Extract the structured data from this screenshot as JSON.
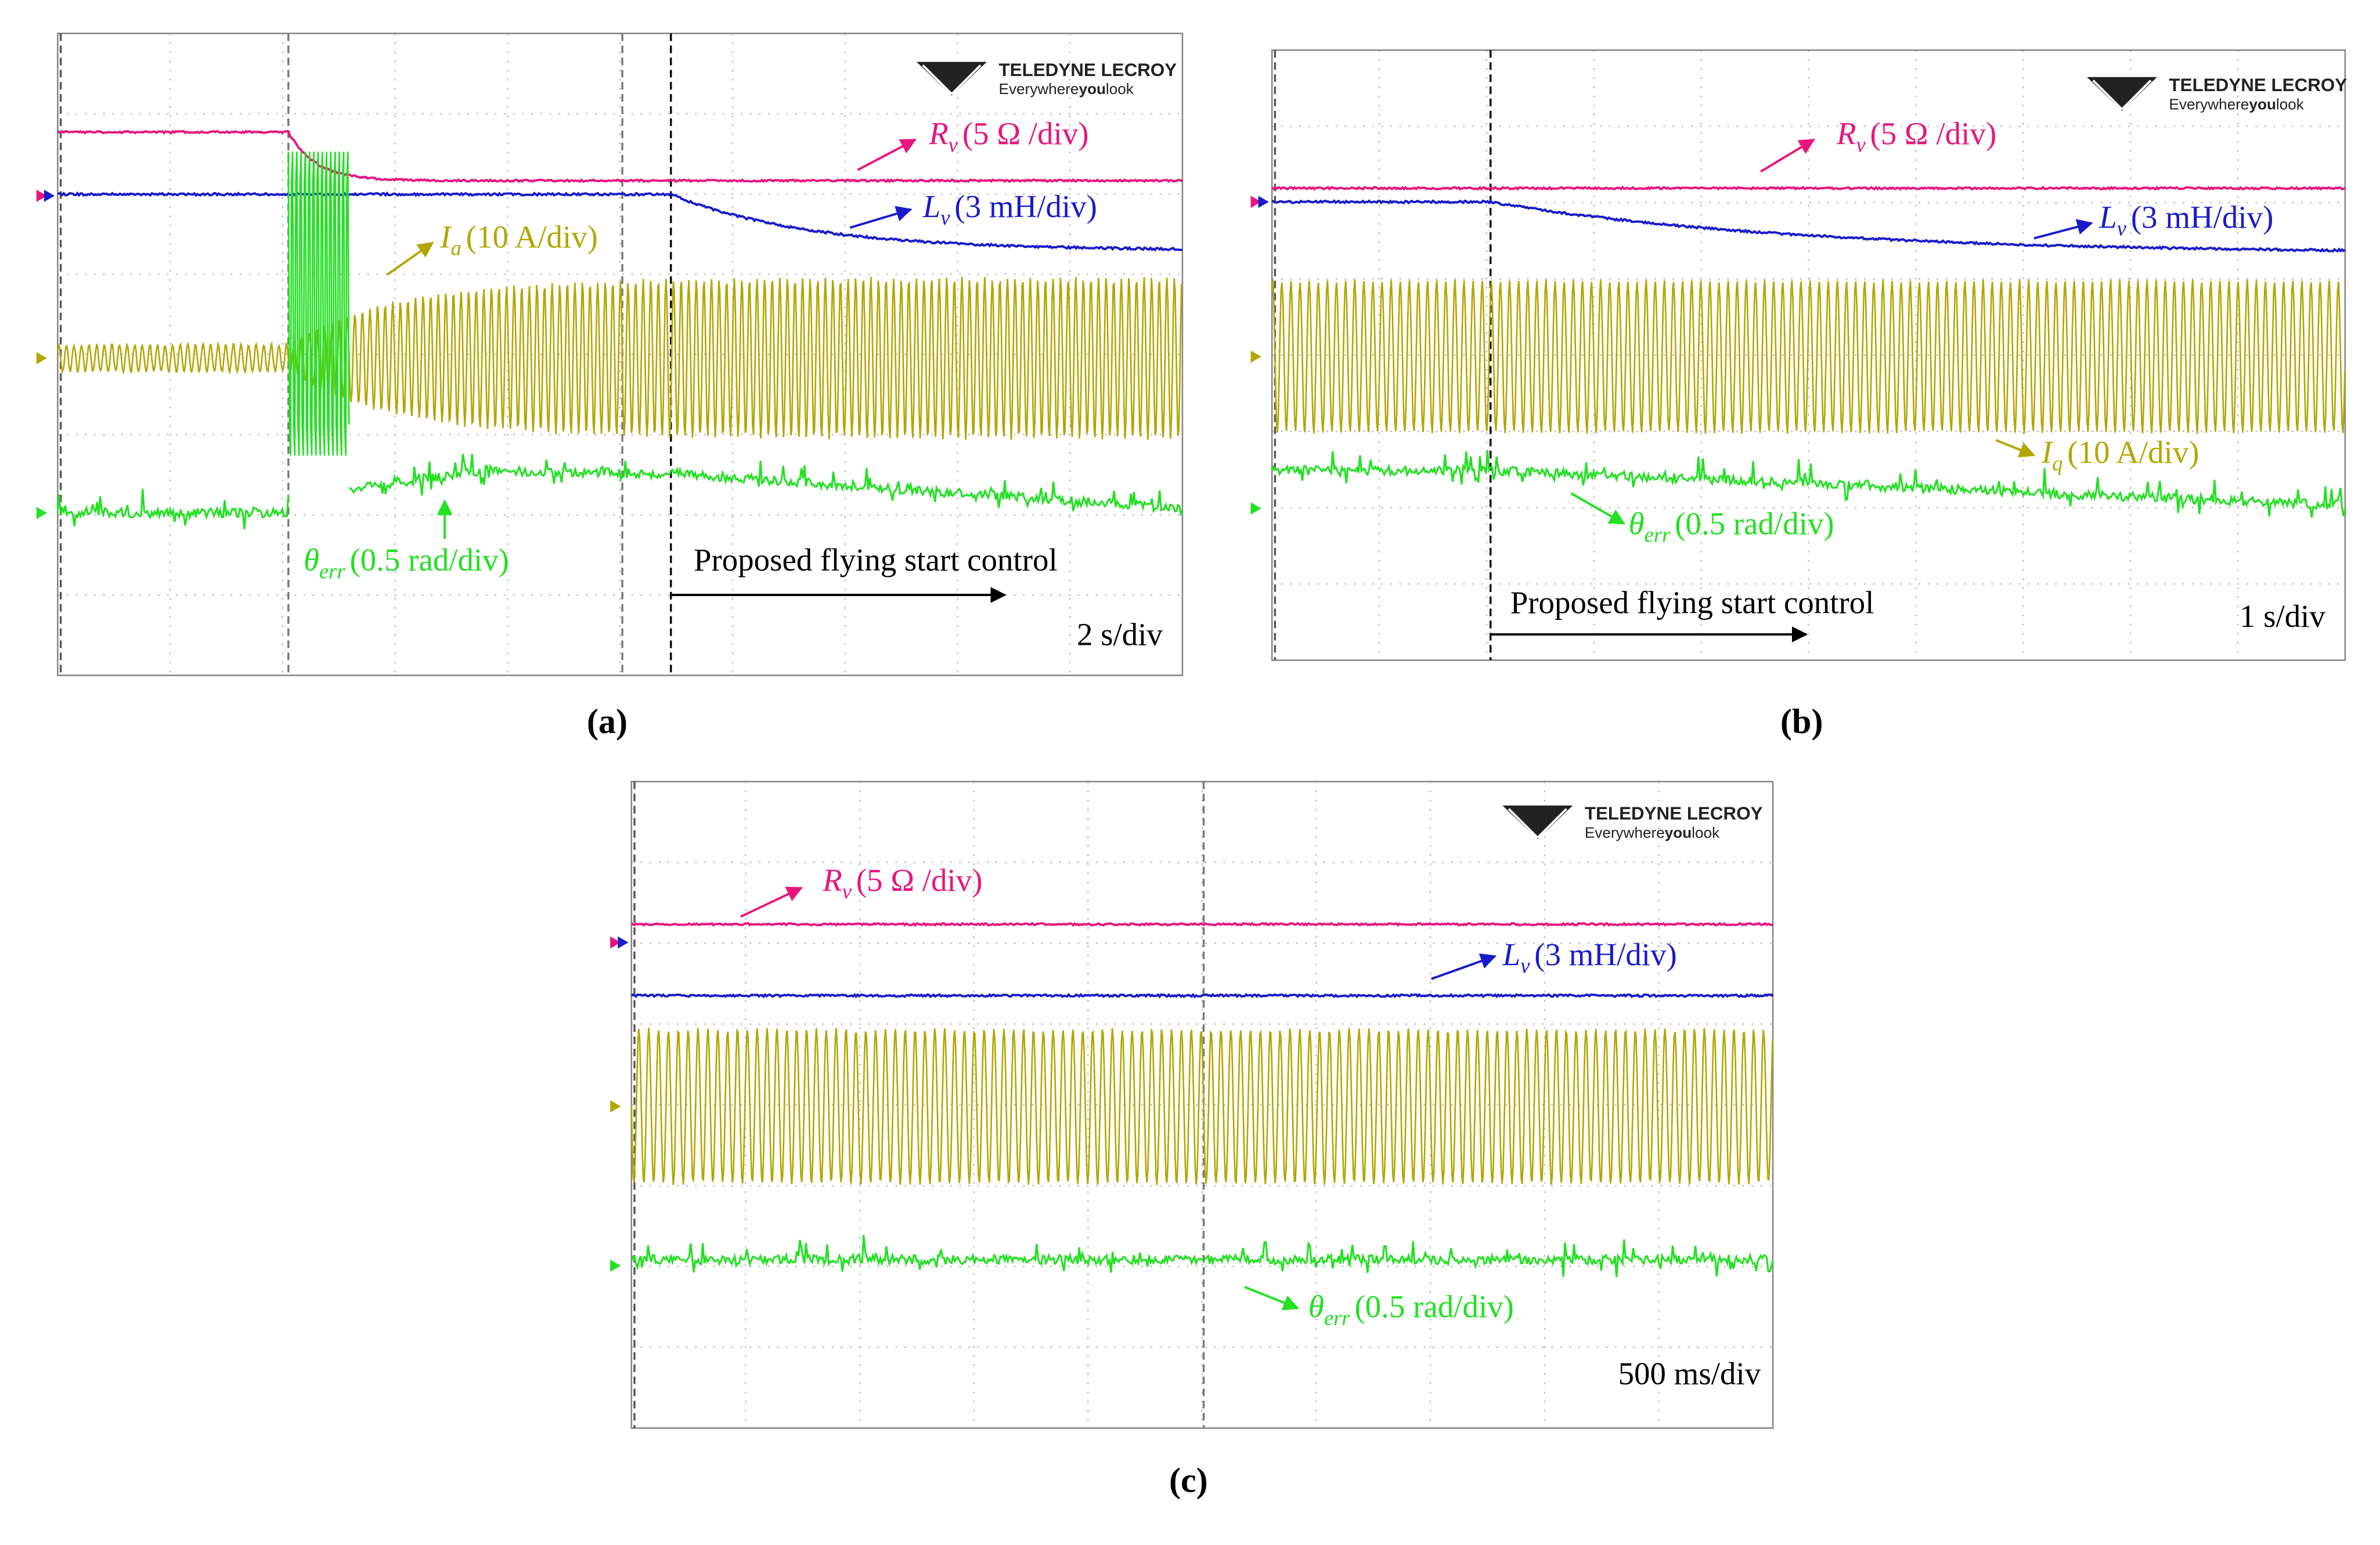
{
  "panels": [
    {
      "caption": "(a)",
      "annotations": [
        {
          "symbol": "R",
          "subscript": "v",
          "scale": "(5 Ω /div)"
        },
        {
          "symbol": "L",
          "subscript": "v",
          "scale": "(3 mH/div)"
        },
        {
          "symbol": "I",
          "subscript": "a",
          "scale": "(10 A/div)"
        },
        {
          "symbol": "θ",
          "subscript": "err",
          "scale": "(0.5 rad/div)"
        }
      ],
      "control_label": "Proposed flying start control",
      "time_scale": "2 s/div",
      "logo": {
        "name": "TELEDYNE LECROY",
        "tagline": [
          "Everywhere",
          "you",
          "look"
        ]
      }
    },
    {
      "caption": "(b)",
      "annotations": [
        {
          "symbol": "R",
          "subscript": "v",
          "scale": "(5 Ω /div)"
        },
        {
          "symbol": "L",
          "subscript": "v",
          "scale": "(3 mH/div)"
        },
        {
          "symbol": "I",
          "subscript": "q",
          "scale": "(10 A/div)"
        },
        {
          "symbol": "θ",
          "subscript": "err",
          "scale": "(0.5 rad/div)"
        }
      ],
      "control_label": "Proposed flying start control",
      "time_scale": "1 s/div",
      "logo": {
        "name": "TELEDYNE LECROY",
        "tagline": [
          "Everywhere",
          "you",
          "look"
        ]
      }
    },
    {
      "caption": "(c)",
      "annotations": [
        {
          "symbol": "R",
          "subscript": "v",
          "scale": "(5 Ω /div)"
        },
        {
          "symbol": "L",
          "subscript": "v",
          "scale": "(3 mH/div)"
        },
        {
          "symbol": "θ",
          "subscript": "err",
          "scale": "(0.5 rad/div)"
        }
      ],
      "time_scale": "500 ms/div",
      "logo": {
        "name": "TELEDYNE LECROY",
        "tagline": [
          "Everywhere",
          "you",
          "look"
        ]
      }
    }
  ]
}
